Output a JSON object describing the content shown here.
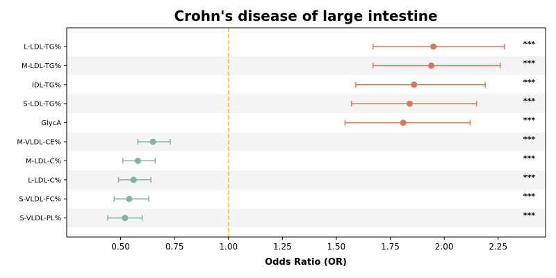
{
  "chart_data": {
    "type": "scatter",
    "subtype": "forest-plot",
    "title": "Crohn's disease of large intestine",
    "xlabel": "Odds Ratio (OR)",
    "ylabel": "",
    "xlim": [
      0.25,
      2.47
    ],
    "xticks": [
      0.5,
      0.75,
      1.0,
      1.25,
      1.5,
      1.75,
      2.0,
      2.25
    ],
    "xtick_labels": [
      "0.50",
      "0.75",
      "1.00",
      "1.25",
      "1.50",
      "1.75",
      "2.00",
      "2.25"
    ],
    "reference_line": 1.0,
    "reference_color": "#f2c87c",
    "risk_color": "#d9775b",
    "protective_color": "#7fb59a",
    "stripe_color": "#f4f4f4",
    "grid": false,
    "rows": [
      {
        "label": "L-LDL-TG%",
        "or": 1.95,
        "lower": 1.67,
        "upper": 2.28,
        "sig": "***"
      },
      {
        "label": "M-LDL-TG%",
        "or": 1.94,
        "lower": 1.67,
        "upper": 2.26,
        "sig": "***"
      },
      {
        "label": "IDL-TG%",
        "or": 1.86,
        "lower": 1.59,
        "upper": 2.19,
        "sig": "***"
      },
      {
        "label": "S-LDL-TG%",
        "or": 1.84,
        "lower": 1.57,
        "upper": 2.15,
        "sig": "***"
      },
      {
        "label": "GlycA",
        "or": 1.81,
        "lower": 1.54,
        "upper": 2.12,
        "sig": "***"
      },
      {
        "label": "M-VLDL-CE%",
        "or": 0.65,
        "lower": 0.58,
        "upper": 0.73,
        "sig": "***"
      },
      {
        "label": "M-LDL-C%",
        "or": 0.58,
        "lower": 0.51,
        "upper": 0.66,
        "sig": "***"
      },
      {
        "label": "L-LDL-C%",
        "or": 0.56,
        "lower": 0.49,
        "upper": 0.64,
        "sig": "***"
      },
      {
        "label": "S-VLDL-FC%",
        "or": 0.54,
        "lower": 0.47,
        "upper": 0.63,
        "sig": "***"
      },
      {
        "label": "S-VLDL-PL%",
        "or": 0.52,
        "lower": 0.44,
        "upper": 0.6,
        "sig": "***"
      }
    ]
  }
}
